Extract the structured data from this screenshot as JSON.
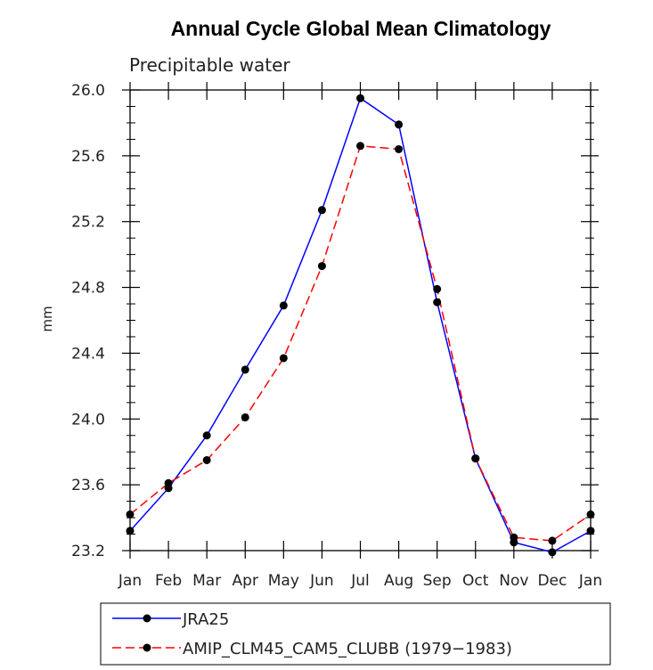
{
  "chart_data": {
    "type": "line",
    "title": "Annual Cycle Global Mean Climatology",
    "subtitle": "Precipitable water",
    "xlabel": "",
    "ylabel": "mm",
    "categories": [
      "Jan",
      "Feb",
      "Mar",
      "Apr",
      "May",
      "Jun",
      "Jul",
      "Aug",
      "Sep",
      "Oct",
      "Nov",
      "Dec",
      "Jan"
    ],
    "yticks": [
      "23.2",
      "23.6",
      "24.0",
      "24.4",
      "24.8",
      "25.2",
      "25.6",
      "26.0"
    ],
    "ylim": [
      23.2,
      26.0
    ],
    "series": [
      {
        "name": "JRA25",
        "color": "#0000ff",
        "dash": "solid",
        "values": [
          23.32,
          23.58,
          23.9,
          24.3,
          24.69,
          25.27,
          25.95,
          25.79,
          24.71,
          23.76,
          23.25,
          23.19,
          23.32
        ]
      },
      {
        "name": "AMIP_CLM45_CAM5_CLUBB (1979−1983)",
        "color": "#ff0000",
        "dash": "dashed",
        "values": [
          23.42,
          23.61,
          23.75,
          24.01,
          24.37,
          24.93,
          25.66,
          25.64,
          24.79,
          23.76,
          23.28,
          23.26,
          23.42
        ]
      }
    ],
    "legend": "bottom",
    "grid": false
  }
}
